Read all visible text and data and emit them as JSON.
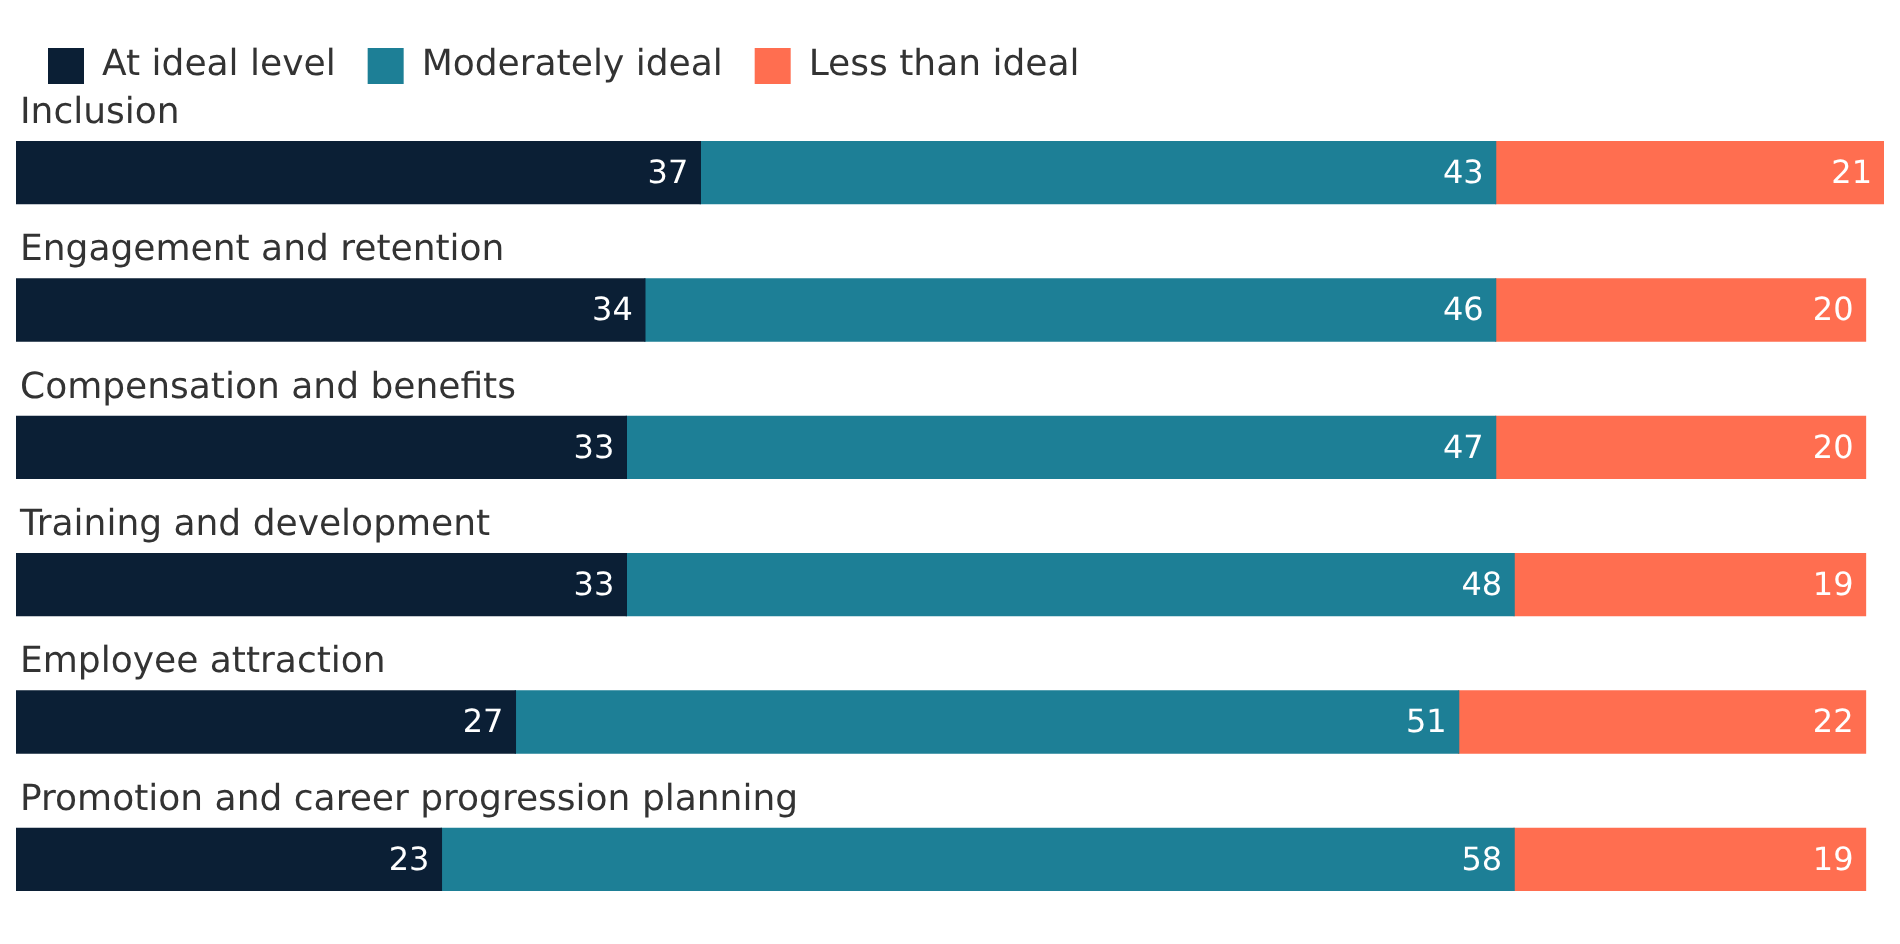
{
  "chart_data": {
    "type": "bar",
    "orientation": "horizontal",
    "stacked": true,
    "tick_labels": "y",
    "data_labels": true,
    "legend": "top left",
    "categories": [
      "Inclusion",
      "Engagement and retention",
      "Compensation and benefits",
      "Training and development",
      "Employee attraction",
      "Promotion and career progression planning"
    ],
    "series": [
      {
        "name": "At ideal level",
        "color": "#0b1f35",
        "values": [
          37,
          34,
          33,
          33,
          27,
          23
        ]
      },
      {
        "name": "Moderately ideal",
        "color": "#1d7f96",
        "values": [
          43,
          46,
          47,
          48,
          51,
          58
        ]
      },
      {
        "name": "Less than ideal",
        "color": "#ff6e50",
        "values": [
          21,
          20,
          20,
          19,
          22,
          19
        ]
      }
    ]
  }
}
